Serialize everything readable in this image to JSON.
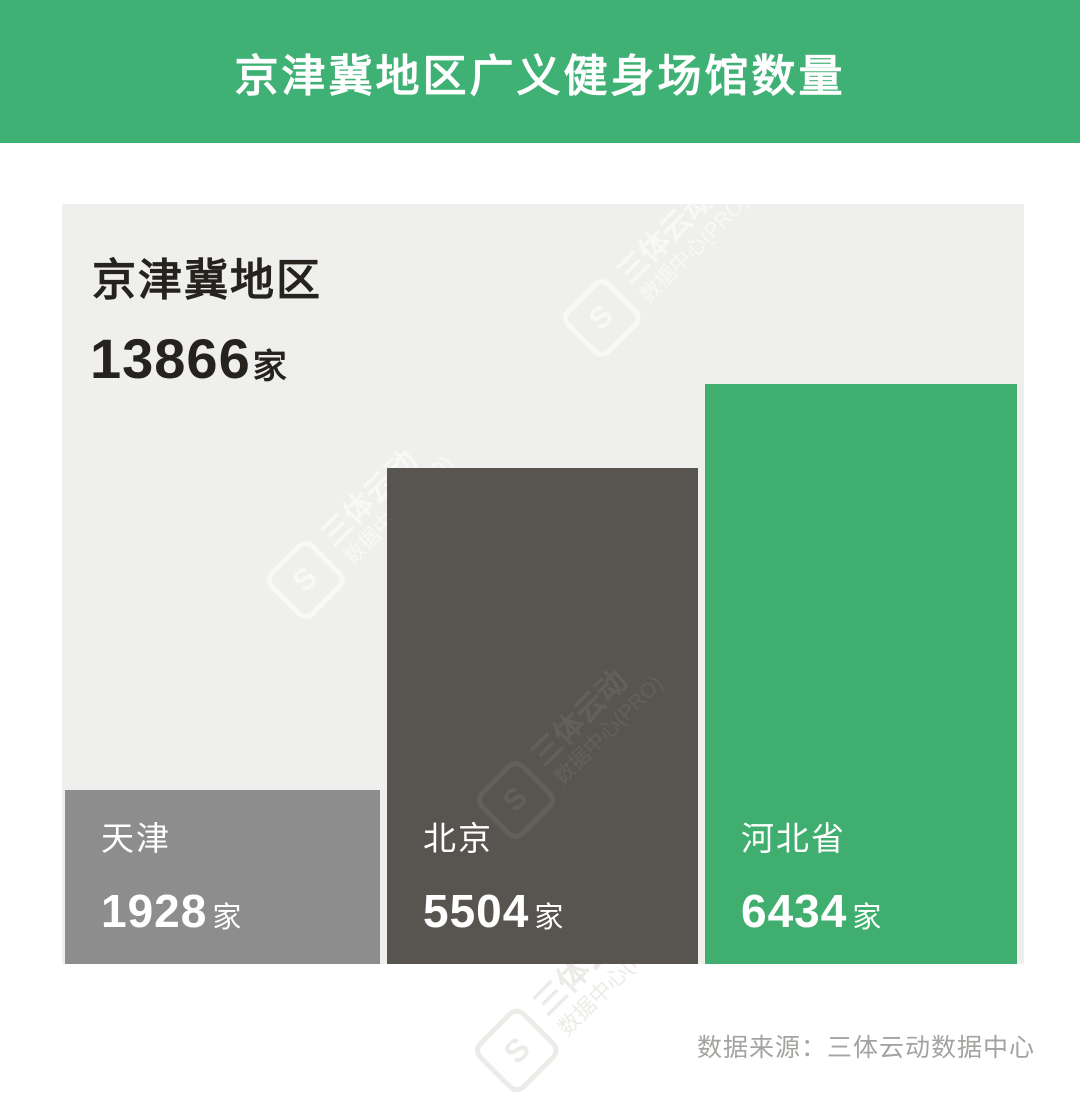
{
  "header": {
    "title": "京津冀地区广义健身场馆数量"
  },
  "panel": {
    "region_label": "京津冀地区",
    "total_value": "13866",
    "total_unit": "家"
  },
  "chart_data": {
    "type": "bar",
    "title": "京津冀地区广义健身场馆数量",
    "region_total_label": "京津冀地区",
    "region_total": 13866,
    "categories": [
      "天津",
      "北京",
      "河北省"
    ],
    "values": [
      1928,
      5504,
      6434
    ],
    "unit": "家",
    "colors": [
      "#8E8D8D",
      "#585450",
      "#3FAE6E"
    ],
    "ylim": [
      0,
      6434
    ],
    "grid": false,
    "legend": false,
    "bar_labels_inside": true
  },
  "watermark": {
    "brand": "三体云动",
    "sub": "数据中心(PRO)",
    "logo_glyph": "S"
  },
  "footer": {
    "source": "数据来源：三体云动数据中心"
  },
  "colors": {
    "header_bg": "#40B175",
    "panel_bg": "#EFEFED",
    "page_bg": "#FFFFFF",
    "bar_tianjin": "#8E8D8D",
    "bar_beijing": "#585450",
    "bar_hebei": "#3FAE6E",
    "title_text": "#26231F",
    "bar_text": "#FFFFFF",
    "footer_text": "#A5A3A0"
  }
}
